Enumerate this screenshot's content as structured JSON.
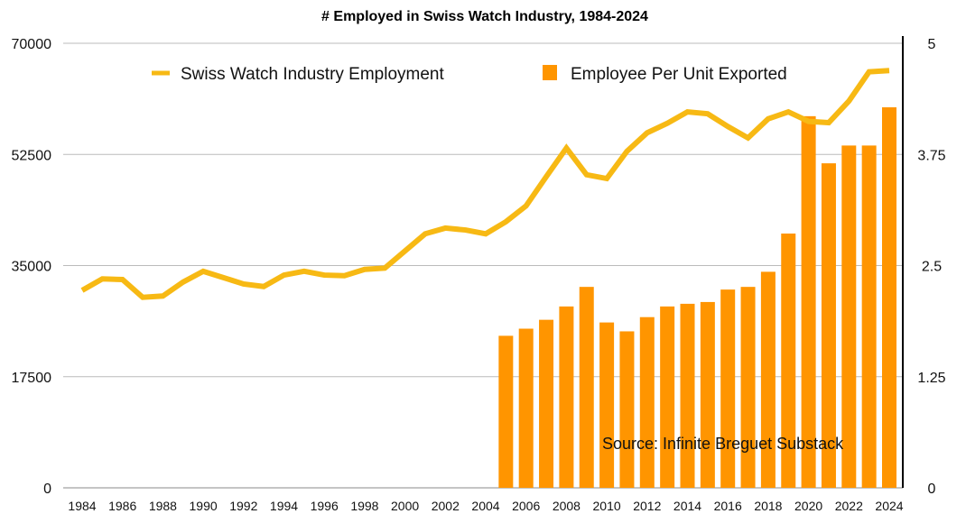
{
  "chart_data": {
    "type": "bar+line",
    "title": "# Employed in Swiss Watch Industry, 1984-2024",
    "xlabel": "",
    "ylabel_left": "",
    "ylabel_right": "",
    "x": [
      1984,
      1985,
      1986,
      1987,
      1988,
      1989,
      1990,
      1991,
      1992,
      1993,
      1994,
      1995,
      1996,
      1997,
      1998,
      1999,
      2000,
      2001,
      2002,
      2003,
      2004,
      2005,
      2006,
      2007,
      2008,
      2009,
      2010,
      2011,
      2012,
      2013,
      2014,
      2015,
      2016,
      2017,
      2018,
      2019,
      2020,
      2021,
      2022,
      2023,
      2024
    ],
    "x_tick_labels": [
      "1984",
      "1986",
      "1988",
      "1990",
      "1992",
      "1994",
      "1996",
      "1998",
      "2000",
      "2002",
      "2004",
      "2006",
      "2008",
      "2010",
      "2012",
      "2014",
      "2016",
      "2018",
      "2020",
      "2022",
      "2024"
    ],
    "ylim_left": [
      0,
      70000
    ],
    "ylim_right": [
      0,
      5
    ],
    "y_ticks_left": [
      "0",
      "17500",
      "35000",
      "52500",
      "70000"
    ],
    "y_ticks_right": [
      "0",
      "1.25",
      "2.5",
      "3.75",
      "5"
    ],
    "grid": true,
    "legend_placement": "top",
    "series": [
      {
        "name": "Swiss Watch Industry Employment",
        "type": "line",
        "axis": "left",
        "color": "#F7B914",
        "values": [
          31100,
          32900,
          32800,
          30000,
          30200,
          32400,
          34100,
          33100,
          32100,
          31700,
          33500,
          34100,
          33500,
          33400,
          34400,
          34600,
          37300,
          40000,
          40900,
          40600,
          40000,
          41900,
          44400,
          49000,
          53500,
          49300,
          48700,
          53000,
          55900,
          57400,
          59200,
          58900,
          56900,
          55100,
          58100,
          59200,
          57700,
          57500,
          60900,
          65500,
          65700
        ]
      },
      {
        "name": "Employee Per Unit Exported",
        "type": "bar",
        "axis": "right",
        "color": "#FF9500",
        "x": [
          2005,
          2006,
          2007,
          2008,
          2009,
          2010,
          2011,
          2012,
          2013,
          2014,
          2015,
          2016,
          2017,
          2018,
          2019,
          2020,
          2021,
          2022,
          2023,
          2024
        ],
        "values": [
          1.71,
          1.79,
          1.89,
          2.04,
          2.26,
          1.86,
          1.76,
          1.92,
          2.04,
          2.07,
          2.09,
          2.23,
          2.26,
          2.43,
          2.86,
          4.18,
          3.65,
          3.85,
          3.85,
          4.28
        ]
      }
    ],
    "annotation": "Source: Infinite Breguet Substack"
  }
}
